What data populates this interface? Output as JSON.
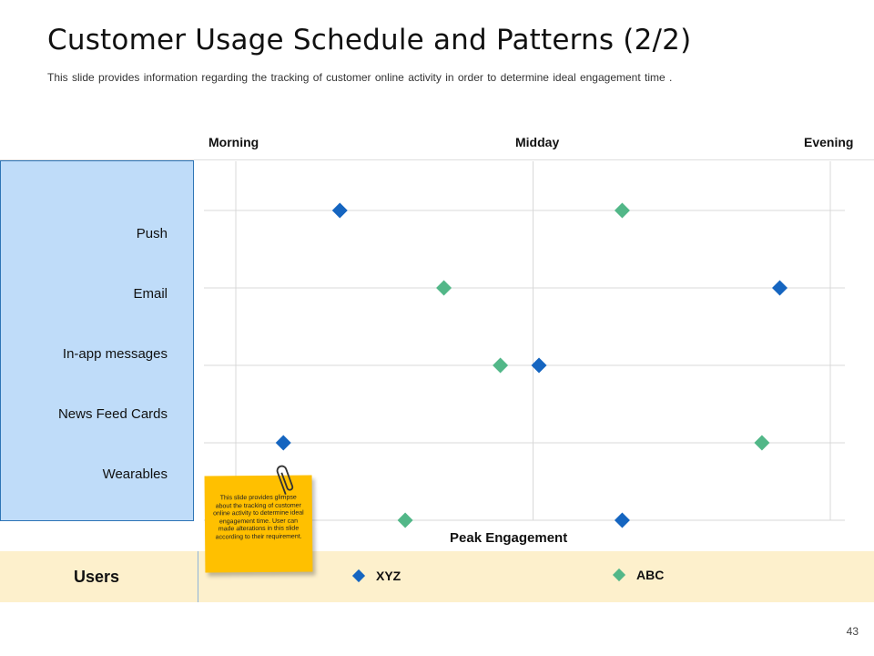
{
  "slide": {
    "title": "Customer Usage Schedule and Patterns (2/2)",
    "subtitle": "This slide provides information regarding the tracking of customer online activity in order to determine ideal engagement time .",
    "page_number": "43"
  },
  "note": {
    "text": "This slide provides glimpse about the tracking of customer online activity to determine ideal engagement time. User can made alterations in this slide according to their requirement."
  },
  "legend": {
    "title": "Users"
  },
  "colors": {
    "xyz": "#1565c0",
    "abc": "#52b788",
    "panel": "#bfdcf9",
    "note": "#ffc000",
    "legend_bar": "#fdf0cc"
  },
  "chart_data": {
    "type": "scatter",
    "x_labels": [
      "Morning",
      "Midday",
      "Evening"
    ],
    "x_range": [
      0,
      2
    ],
    "xlabel": "Peak Engagement",
    "categories": [
      "Push",
      "Email",
      "In-app messages",
      "News Feed Cards",
      "Wearables"
    ],
    "grid": true,
    "legend_position": "bottom",
    "series": [
      {
        "name": "XYZ",
        "marker": "diamond",
        "color": "#1565c0",
        "points": [
          {
            "y_index": 0,
            "x": 0.35
          },
          {
            "y_index": 1,
            "x": 1.83
          },
          {
            "y_index": 2,
            "x": 1.02
          },
          {
            "y_index": 3,
            "x": 0.16
          },
          {
            "y_index": 4,
            "x": 1.3
          }
        ]
      },
      {
        "name": "ABC",
        "marker": "diamond",
        "color": "#52b788",
        "points": [
          {
            "y_index": 0,
            "x": 1.3
          },
          {
            "y_index": 1,
            "x": 0.7
          },
          {
            "y_index": 2,
            "x": 0.89
          },
          {
            "y_index": 3,
            "x": 1.77
          },
          {
            "y_index": 4,
            "x": 0.57
          }
        ]
      }
    ]
  }
}
